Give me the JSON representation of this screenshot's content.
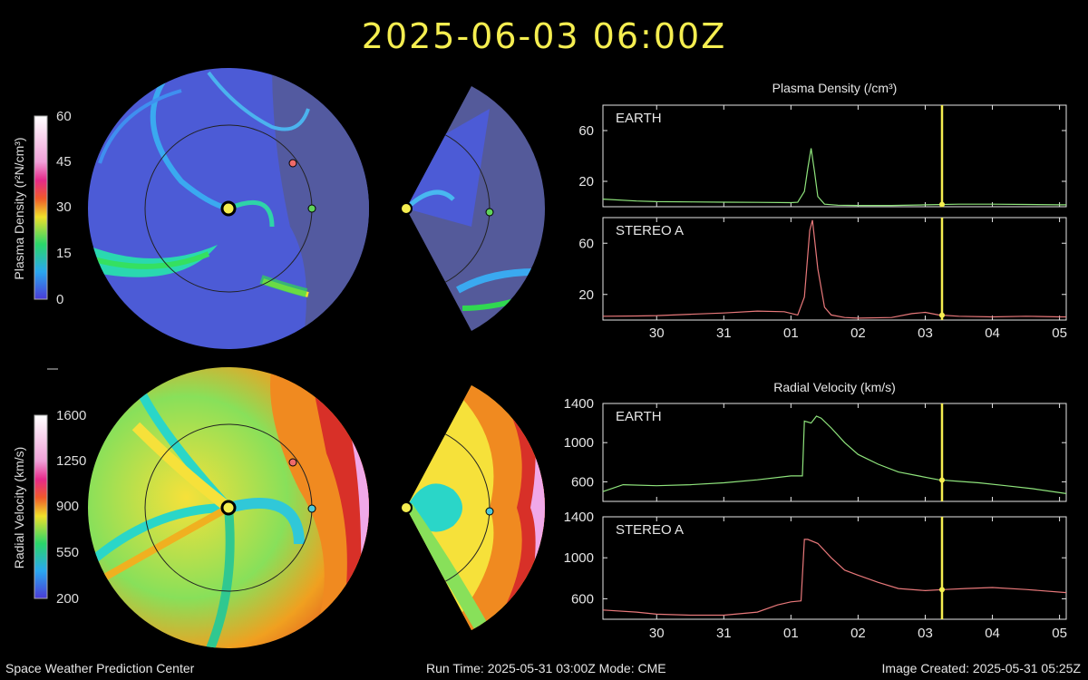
{
  "title": "2025-06-03  06:00Z",
  "footer": {
    "left": "Space Weather Prediction Center",
    "center": "Run Time: 2025-05-31 03:00Z  Mode: CME",
    "right": "Image Created: 2025-05-31 05:25Z"
  },
  "colorbars": {
    "density": {
      "label": "Plasma Density (r²N/cm³)",
      "ticks": [
        "60",
        "45",
        "30",
        "15",
        "0"
      ]
    },
    "velocity": {
      "label": "Radial Velocity (km/s)",
      "ticks": [
        "1600",
        "1250",
        "900",
        "550",
        "200"
      ]
    }
  },
  "colors": {
    "earth_line": "#8fe47c",
    "stereo_line": "#e8787a",
    "marker": "#f5ee50",
    "title": "#f5ee50",
    "earth_marker": "#5fd35a",
    "stereo_marker": "#ef6a6a"
  },
  "icons": {
    "sun": "sun-marker-icon",
    "earth": "earth-marker-icon",
    "stereo": "stereo-a-marker-icon"
  },
  "chart_data": [
    {
      "type": "line",
      "title": "Plasma Density (/cm³)",
      "x_ticks": [
        "30",
        "31",
        "01",
        "02",
        "03",
        "04",
        "05"
      ],
      "current_time": "2025-06-03 06:00Z",
      "panels": [
        {
          "name": "EARTH",
          "ylim": [
            0,
            80
          ],
          "y_ticks": [
            20,
            60
          ],
          "color": "#8fe47c",
          "x": [
            29.2,
            29.7,
            30.0,
            30.5,
            31.0,
            31.5,
            32.0,
            32.1,
            32.2,
            32.25,
            32.3,
            32.35,
            32.4,
            32.5,
            32.7,
            33.0,
            33.5,
            34.0,
            34.5,
            35.0,
            35.5,
            36.0,
            36.1
          ],
          "y": [
            6,
            4.5,
            4,
            3.8,
            3.6,
            3.4,
            3.2,
            3.5,
            12,
            30,
            46,
            28,
            8,
            2,
            1.2,
            1,
            1,
            1.5,
            2,
            2,
            1.8,
            1.5,
            1.5
          ]
        },
        {
          "name": "STEREO A",
          "ylim": [
            0,
            80
          ],
          "y_ticks": [
            20,
            60
          ],
          "color": "#e8787a",
          "x": [
            29.2,
            29.7,
            30.0,
            30.5,
            31.0,
            31.5,
            31.9,
            32.1,
            32.2,
            32.28,
            32.32,
            32.4,
            32.5,
            32.6,
            32.8,
            33.0,
            33.5,
            33.8,
            34.0,
            34.2,
            34.5,
            35.0,
            35.5,
            36.0,
            36.1
          ],
          "y": [
            3,
            3.2,
            3.5,
            4.5,
            5.5,
            7,
            6.5,
            4,
            18,
            70,
            78,
            40,
            10,
            4,
            2,
            1.5,
            2,
            5,
            6,
            4,
            3,
            2.5,
            3,
            2.5,
            2.5
          ]
        }
      ]
    },
    {
      "type": "line",
      "title": "Radial Velocity (km/s)",
      "x_ticks": [
        "30",
        "31",
        "01",
        "02",
        "03",
        "04",
        "05"
      ],
      "current_time": "2025-06-03 06:00Z",
      "panels": [
        {
          "name": "EARTH",
          "ylim": [
            400,
            1400
          ],
          "y_ticks": [
            600,
            1000,
            1400
          ],
          "color": "#8fe47c",
          "x": [
            29.2,
            29.5,
            30.0,
            30.5,
            31.0,
            31.5,
            32.0,
            32.17,
            32.2,
            32.3,
            32.38,
            32.45,
            32.6,
            32.8,
            33.0,
            33.3,
            33.6,
            33.9,
            34.2,
            34.5,
            34.8,
            35.2,
            35.6,
            36.1
          ],
          "y": [
            500,
            570,
            560,
            570,
            590,
            620,
            660,
            660,
            1220,
            1200,
            1270,
            1250,
            1150,
            1000,
            880,
            780,
            700,
            660,
            620,
            605,
            590,
            560,
            530,
            480
          ]
        },
        {
          "name": "STEREO A",
          "ylim": [
            400,
            1400
          ],
          "y_ticks": [
            600,
            1000,
            1400
          ],
          "color": "#e8787a",
          "x": [
            29.2,
            29.7,
            30.0,
            30.5,
            31.0,
            31.5,
            31.8,
            32.0,
            32.15,
            32.2,
            32.25,
            32.4,
            32.6,
            32.8,
            33.0,
            33.3,
            33.6,
            34.0,
            34.3,
            34.6,
            35.0,
            35.5,
            36.1
          ],
          "y": [
            490,
            470,
            450,
            440,
            440,
            470,
            540,
            570,
            580,
            1180,
            1180,
            1140,
            1000,
            880,
            830,
            760,
            700,
            680,
            690,
            700,
            710,
            690,
            660
          ]
        }
      ]
    }
  ]
}
